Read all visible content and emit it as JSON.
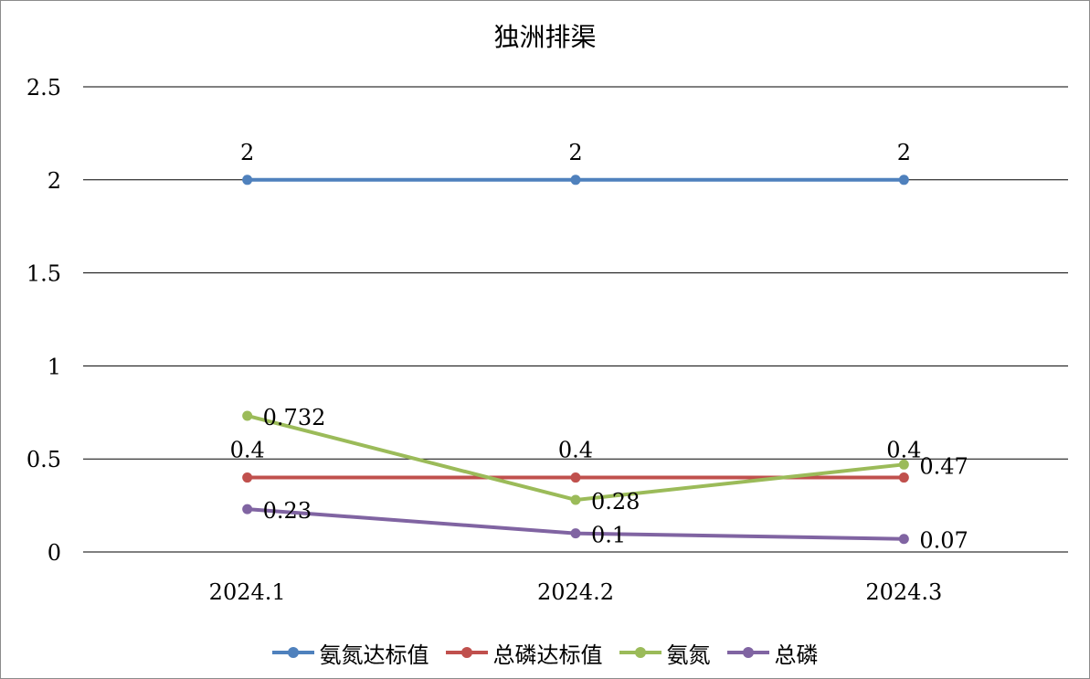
{
  "chart_data": {
    "type": "line",
    "title": "独洲排渠",
    "categories": [
      "2024.1",
      "2024.2",
      "2024.3"
    ],
    "ylim": [
      0,
      2.5
    ],
    "yticks": [
      "0",
      "0.5",
      "1",
      "1.5",
      "2",
      "2.5"
    ],
    "grid": true,
    "legend_position": "bottom",
    "series": [
      {
        "name": "氨氮达标值",
        "values": [
          2,
          2,
          2
        ],
        "labels": [
          "2",
          "2",
          "2"
        ],
        "label_pos": "above",
        "color": "#4f81bd"
      },
      {
        "name": "总磷达标值",
        "values": [
          0.4,
          0.4,
          0.4
        ],
        "labels": [
          "0.4",
          "0.4",
          "0.4"
        ],
        "label_pos": "above",
        "color": "#c0504d"
      },
      {
        "name": "氨氮",
        "values": [
          0.732,
          0.28,
          0.47
        ],
        "labels": [
          "0.732",
          "0.28",
          "0.47"
        ],
        "label_pos": "right",
        "color": "#9bbb59"
      },
      {
        "name": "总磷",
        "values": [
          0.23,
          0.1,
          0.07
        ],
        "labels": [
          "0.23",
          "0.1",
          "0.07"
        ],
        "label_pos": "right",
        "color": "#8064a2"
      }
    ]
  }
}
